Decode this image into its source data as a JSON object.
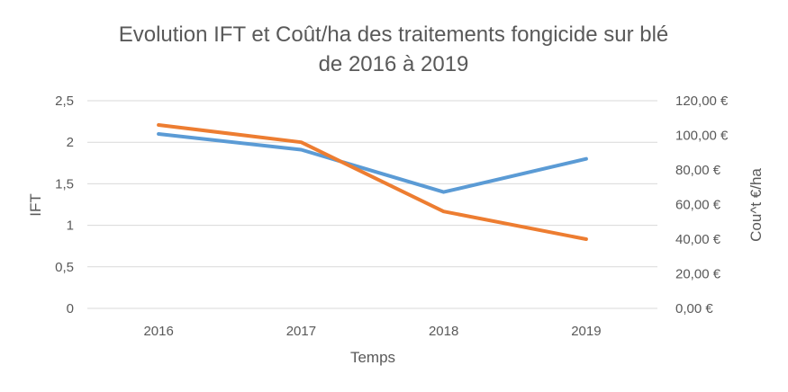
{
  "chart_data": {
    "type": "line",
    "title_line1": "Evolution IFT et Coût/ha des traitements fongicide sur blé",
    "title_line2": "de 2016 à 2019",
    "xlabel": "Temps",
    "ylabel_left": "IFT",
    "ylabel_right": "Cou^t €/ha",
    "categories": [
      "2016",
      "2017",
      "2018",
      "2019"
    ],
    "y_left_range": [
      0,
      2.5
    ],
    "y_left_ticks": [
      "0",
      "0,5",
      "1",
      "1,5",
      "2",
      "2,5"
    ],
    "y_right_range": [
      0,
      120
    ],
    "y_right_ticks": [
      "0,00 €",
      "20,00 €",
      "40,00 €",
      "60,00 €",
      "80,00 €",
      "100,00 €",
      "120,00 €"
    ],
    "grid": true,
    "legend": "none",
    "series": [
      {
        "axis": "left",
        "color": "#5b9bd5",
        "values": [
          2.1,
          1.91,
          1.4,
          1.8
        ]
      },
      {
        "axis": "right",
        "color": "#ed7d31",
        "values": [
          106,
          96,
          56,
          40
        ]
      }
    ]
  }
}
